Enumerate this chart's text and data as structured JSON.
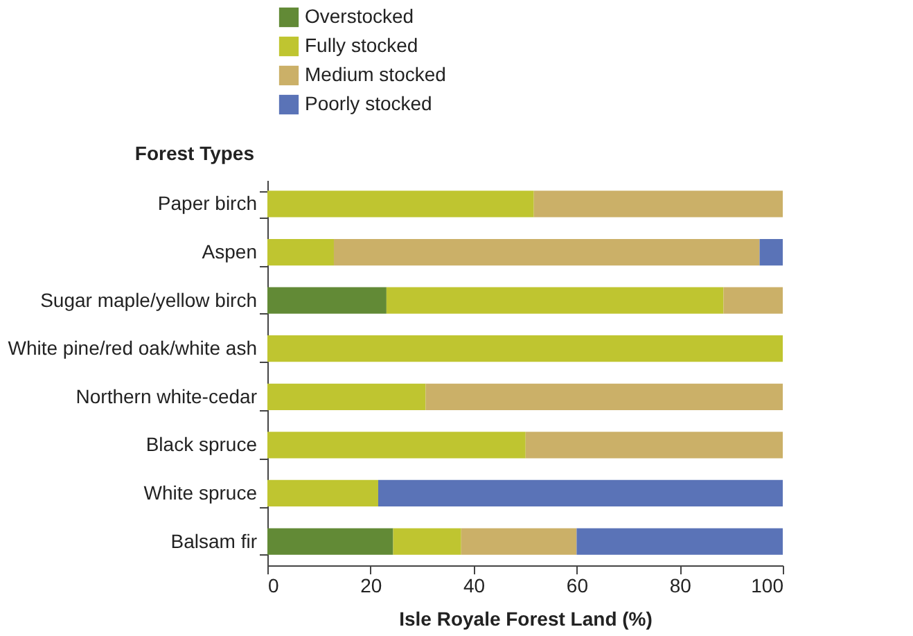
{
  "chart_data": {
    "type": "bar",
    "orientation": "horizontal",
    "stacked": true,
    "ylabel": "Forest Types",
    "xlabel": "Isle Royale Forest Land (%)",
    "categories": [
      "Paper birch",
      "Aspen",
      "Sugar maple/yellow birch",
      "White pine/red oak/white ash",
      "Northern white-cedar",
      "Black spruce",
      "White spruce",
      "Balsam fir"
    ],
    "series": [
      {
        "name": "Overstocked",
        "color": "#628a36",
        "values": [
          null,
          null,
          23.1,
          null,
          null,
          null,
          null,
          24.4
        ]
      },
      {
        "name": "Fully stocked",
        "color": "#bfc530",
        "values": [
          51.7,
          12.9,
          65.4,
          100,
          30.7,
          50.1,
          21.5,
          13.2
        ]
      },
      {
        "name": "Medium stocked",
        "color": "#cbb068",
        "values": [
          48.3,
          82.6,
          11.5,
          null,
          69.3,
          49.9,
          null,
          22.4
        ]
      },
      {
        "name": "Poorly stocked",
        "color": "#5a73b7",
        "values": [
          null,
          4.5,
          null,
          null,
          null,
          null,
          78.5,
          40.0
        ]
      }
    ],
    "xlim": [
      0,
      100
    ],
    "xticks": [
      0,
      20,
      40,
      60,
      80,
      100
    ],
    "grid": false,
    "legend": "top"
  }
}
